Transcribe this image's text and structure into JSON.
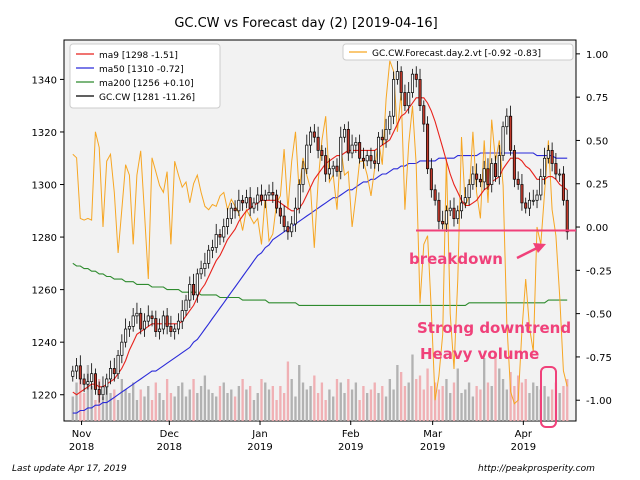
{
  "chart_data": {
    "type": "candlestick",
    "title": "GC.CW vs Forecast day (2)  [2019-04-16]",
    "x_ticks": [
      "Nov\n2018",
      "Dec\n2018",
      "Jan\n2019",
      "Feb\n2019",
      "Mar\n2019",
      "Apr\n2019"
    ],
    "x_tick_dates": [
      "2018-11-01",
      "2018-12-01",
      "2019-01-01",
      "2019-02-01",
      "2019-03-01",
      "2019-04-01"
    ],
    "x_range": [
      "2018-10-26",
      "2019-04-19"
    ],
    "y_left": {
      "range": [
        1210,
        1355
      ],
      "ticks": [
        1220,
        1240,
        1260,
        1280,
        1300,
        1320,
        1340
      ]
    },
    "y_right": {
      "range": [
        -1.12,
        1.08
      ],
      "ticks": [
        "1.00",
        "0.75",
        "0.50",
        "0.25",
        "0.00",
        "-0.25",
        "-0.50",
        "-0.75",
        "-1.00"
      ],
      "tick_values": [
        1.0,
        0.75,
        0.5,
        0.25,
        0.0,
        -0.25,
        -0.5,
        -0.75,
        -1.0
      ]
    },
    "grid": false,
    "legend_left": {
      "placement": "top-left",
      "entries": [
        {
          "label": "ma9 [1298 -1.51]",
          "color": "#e8221c"
        },
        {
          "label": "ma50 [1310 -0.72]",
          "color": "#2b2bd9"
        },
        {
          "label": "ma200 [1256 +0.10]",
          "color": "#2e8b2e"
        },
        {
          "label": "GC.CW [1281 -11.26]",
          "color": "#000000"
        }
      ]
    },
    "legend_right": {
      "placement": "top-right",
      "entries": [
        {
          "label": "GC.CW.Forecast.day.2.vt [-0.92 -0.83]",
          "color": "#f6a623"
        }
      ]
    },
    "price_close": [
      1229,
      1231,
      1226,
      1224,
      1225,
      1228,
      1222,
      1220,
      1223,
      1226,
      1230,
      1228,
      1235,
      1240,
      1245,
      1246,
      1250,
      1251,
      1245,
      1248,
      1250,
      1249,
      1244,
      1245,
      1250,
      1246,
      1244,
      1245,
      1248,
      1252,
      1256,
      1262,
      1258,
      1266,
      1268,
      1270,
      1275,
      1276,
      1281,
      1280,
      1284,
      1287,
      1291,
      1290,
      1294,
      1293,
      1295,
      1291,
      1293,
      1296,
      1294,
      1296,
      1297,
      1296,
      1291,
      1288,
      1284,
      1282,
      1285,
      1291,
      1300,
      1306,
      1315,
      1320,
      1318,
      1313,
      1311,
      1304,
      1306,
      1307,
      1305,
      1318,
      1321,
      1312,
      1315,
      1316,
      1310,
      1309,
      1311,
      1309,
      1308,
      1318,
      1317,
      1321,
      1326,
      1340,
      1343,
      1335,
      1330,
      1335,
      1342,
      1340,
      1330,
      1323,
      1306,
      1298,
      1294,
      1286,
      1285,
      1290,
      1291,
      1287,
      1290,
      1293,
      1295,
      1300,
      1304,
      1302,
      1301,
      1306,
      1300,
      1308,
      1303,
      1311,
      1322,
      1326,
      1313,
      1302,
      1300,
      1293,
      1291,
      1294,
      1294,
      1296,
      1303,
      1310,
      1313,
      1308,
      1304,
      1304,
      1294,
      1282
    ],
    "ma9": [
      1221,
      1220,
      1221,
      1222,
      1223,
      1224,
      1224,
      1223,
      1223,
      1224,
      1225,
      1226,
      1228,
      1230,
      1233,
      1237,
      1240,
      1243,
      1244,
      1245,
      1246,
      1247,
      1247,
      1247,
      1247,
      1247,
      1247,
      1247,
      1247,
      1248,
      1250,
      1252,
      1254,
      1257,
      1260,
      1262,
      1265,
      1268,
      1271,
      1273,
      1276,
      1279,
      1281,
      1283,
      1286,
      1288,
      1290,
      1291,
      1292,
      1293,
      1294,
      1294,
      1294,
      1294,
      1294,
      1293,
      1292,
      1291,
      1290,
      1290,
      1291,
      1293,
      1296,
      1299,
      1302,
      1304,
      1306,
      1308,
      1309,
      1310,
      1311,
      1311,
      1312,
      1313,
      1313,
      1313,
      1313,
      1313,
      1313,
      1313,
      1313,
      1314,
      1315,
      1316,
      1317,
      1320,
      1323,
      1326,
      1327,
      1329,
      1331,
      1333,
      1333,
      1333,
      1331,
      1328,
      1324,
      1319,
      1314,
      1309,
      1304,
      1300,
      1297,
      1294,
      1292,
      1292,
      1293,
      1294,
      1296,
      1298,
      1299,
      1301,
      1302,
      1303,
      1306,
      1308,
      1310,
      1310,
      1310,
      1309,
      1307,
      1306,
      1304,
      1302,
      1302,
      1302,
      1303,
      1303,
      1302,
      1300,
      1299,
      1298
    ],
    "ma50": [
      1213,
      1213,
      1214,
      1214,
      1215,
      1215,
      1216,
      1216,
      1217,
      1217,
      1218,
      1219,
      1220,
      1221,
      1222,
      1223,
      1224,
      1225,
      1226,
      1227,
      1228,
      1229,
      1229,
      1230,
      1231,
      1232,
      1233,
      1234,
      1235,
      1236,
      1237,
      1238,
      1240,
      1241,
      1243,
      1245,
      1247,
      1249,
      1251,
      1253,
      1255,
      1257,
      1259,
      1261,
      1263,
      1265,
      1267,
      1269,
      1271,
      1273,
      1274,
      1276,
      1277,
      1279,
      1280,
      1281,
      1282,
      1283,
      1284,
      1285,
      1286,
      1287,
      1288,
      1289,
      1290,
      1291,
      1292,
      1293,
      1294,
      1295,
      1295,
      1296,
      1297,
      1298,
      1298,
      1299,
      1300,
      1301,
      1301,
      1302,
      1302,
      1303,
      1304,
      1304,
      1305,
      1306,
      1306,
      1307,
      1307,
      1308,
      1308,
      1308,
      1309,
      1309,
      1309,
      1309,
      1309,
      1310,
      1310,
      1310,
      1310,
      1310,
      1311,
      1311,
      1311,
      1311,
      1311,
      1311,
      1312,
      1312,
      1312,
      1312,
      1312,
      1312,
      1312,
      1312,
      1312,
      1312,
      1312,
      1312,
      1312,
      1312,
      1312,
      1311,
      1311,
      1311,
      1311,
      1311,
      1310,
      1310,
      1310,
      1310
    ],
    "ma200": [
      1270,
      1269,
      1269,
      1268,
      1268,
      1267,
      1267,
      1266,
      1266,
      1265,
      1265,
      1264,
      1264,
      1264,
      1263,
      1263,
      1263,
      1262,
      1262,
      1262,
      1262,
      1261,
      1261,
      1261,
      1261,
      1260,
      1260,
      1260,
      1260,
      1259,
      1259,
      1259,
      1259,
      1259,
      1258,
      1258,
      1258,
      1258,
      1258,
      1257,
      1257,
      1257,
      1257,
      1257,
      1257,
      1256,
      1256,
      1256,
      1256,
      1256,
      1256,
      1256,
      1255,
      1255,
      1255,
      1255,
      1255,
      1255,
      1255,
      1255,
      1254,
      1254,
      1254,
      1254,
      1254,
      1254,
      1254,
      1254,
      1254,
      1254,
      1254,
      1254,
      1254,
      1254,
      1254,
      1254,
      1254,
      1254,
      1254,
      1254,
      1254,
      1254,
      1254,
      1254,
      1254,
      1254,
      1254,
      1254,
      1254,
      1254,
      1254,
      1254,
      1254,
      1254,
      1254,
      1254,
      1254,
      1254,
      1254,
      1254,
      1254,
      1254,
      1254,
      1254,
      1254,
      1255,
      1255,
      1255,
      1255,
      1255,
      1255,
      1255,
      1255,
      1255,
      1255,
      1255,
      1255,
      1255,
      1255,
      1255,
      1255,
      1255,
      1255,
      1255,
      1255,
      1255,
      1256,
      1256,
      1256,
      1256,
      1256,
      1256
    ],
    "forecast": [
      0.42,
      0.4,
      0.05,
      0.04,
      0.05,
      0.04,
      0.55,
      0.46,
      0.0,
      0.38,
      0.42,
      0.2,
      -0.15,
      0.1,
      0.36,
      0.3,
      -0.1,
      0.3,
      0.44,
      0.08,
      -0.3,
      0.4,
      0.32,
      0.24,
      0.2,
      0.32,
      -0.1,
      0.38,
      0.3,
      0.23,
      0.26,
      0.14,
      0.25,
      0.3,
      0.2,
      0.12,
      0.1,
      0.13,
      0.12,
      0.18,
      0.2,
      0.1,
      0.16,
      0.12,
      0.08,
      -0.02,
      0.1,
      0.06,
      0.02,
      0.05,
      -0.1,
      0.18,
      -0.08,
      -0.04,
      0.14,
      0.18,
      0.45,
      0.1,
      0.38,
      0.55,
      0.2,
      0.4,
      0.3,
      0.22,
      -0.12,
      0.26,
      0.5,
      0.64,
      0.26,
      0.3,
      0.1,
      0.46,
      0.3,
      0.32,
      0.0,
      0.18,
      0.38,
      0.38,
      0.3,
      0.18,
      0.34,
      0.5,
      0.36,
      0.74,
      0.96,
      0.9,
      0.55,
      0.78,
      0.1,
      0.48,
      0.7,
      0.36,
      -0.44,
      -0.1,
      -0.05,
      -0.48,
      -1.0,
      -0.86,
      -0.62,
      0.4,
      -0.5,
      -0.82,
      -0.3,
      0.52,
      0.12,
      0.18,
      0.55,
      0.2,
      0.05,
      0.5,
      0.14,
      0.62,
      0.38,
      0.5,
      0.24,
      -0.55,
      -0.95,
      -1.02,
      -1.0,
      -0.6,
      -0.3,
      -0.58,
      -0.72,
      0.0,
      -0.1,
      0.2,
      0.5,
      0.1,
      -0.05,
      -0.4,
      -0.83,
      -0.92
    ],
    "volume_rel": [
      0.35,
      0.55,
      0.6,
      0.4,
      0.8,
      0.5,
      0.3,
      0.6,
      0.35,
      0.5,
      0.4,
      0.45,
      0.3,
      0.6,
      0.45,
      0.4,
      0.55,
      0.3,
      0.45,
      0.35,
      0.5,
      0.3,
      0.55,
      0.4,
      0.3,
      0.6,
      0.4,
      0.35,
      0.5,
      0.55,
      0.35,
      0.45,
      0.6,
      0.4,
      0.5,
      0.65,
      0.45,
      0.4,
      0.35,
      0.5,
      0.55,
      0.4,
      0.45,
      0.35,
      0.5,
      0.6,
      0.45,
      0.5,
      0.3,
      0.4,
      0.6,
      0.55,
      0.45,
      0.5,
      0.3,
      0.5,
      0.4,
      0.85,
      0.6,
      0.35,
      0.8,
      0.55,
      0.45,
      0.5,
      0.65,
      0.4,
      0.55,
      0.3,
      0.45,
      0.35,
      0.6,
      0.55,
      0.4,
      0.6,
      0.45,
      0.55,
      0.3,
      0.5,
      0.4,
      0.45,
      0.55,
      0.4,
      0.5,
      0.35,
      0.6,
      0.45,
      0.8,
      0.7,
      0.5,
      0.55,
      0.95,
      0.6,
      0.65,
      0.45,
      0.75,
      0.5,
      0.55,
      0.45,
      0.5,
      0.6,
      0.4,
      0.55,
      0.75,
      0.4,
      0.45,
      0.55,
      0.35,
      0.5,
      0.45,
      0.9,
      0.55,
      0.5,
      0.95,
      0.75,
      0.6,
      0.45,
      0.7,
      0.5,
      0.65,
      0.55,
      0.6,
      0.4,
      0.55,
      0.5,
      0.45,
      0.5,
      0.35,
      0.45,
      0.55,
      0.4,
      0.5,
      0.6
    ],
    "hline_level": -0.02,
    "annotations": {
      "breakdown": "breakdown",
      "downtrend": "Strong downtrend",
      "volume": "Heavy volume"
    },
    "annotation_color": "#f0417a"
  },
  "footer": {
    "left": "Last update Apr 17, 2019",
    "right": "http://peakprosperity.com"
  }
}
